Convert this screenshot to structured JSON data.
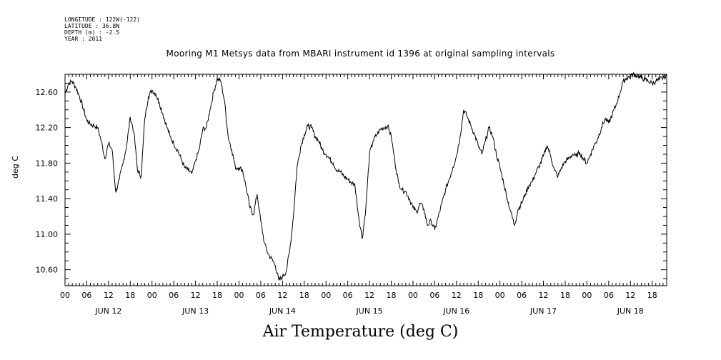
{
  "header": {
    "longitude": "LONGITUDE : 122W(-122)",
    "latitude": "LATITUDE : 36.8N",
    "depth": "DEPTH (m) : -2.5",
    "year": "YEAR : 2011"
  },
  "chart_data": {
    "type": "line",
    "title": "Mooring M1 Metsys data from MBARI instrument id 1396 at original sampling intervals",
    "xlabel": "Air Temperature (deg C)",
    "ylabel": "deg C",
    "ylim": [
      10.42,
      12.8
    ],
    "yticks": [
      10.6,
      11.0,
      11.4,
      11.8,
      12.2,
      12.6
    ],
    "ytick_labels": [
      "10.60",
      "11.00",
      "11.40",
      "11.80",
      "12.20",
      "12.60"
    ],
    "xlim_hours": [
      0,
      166
    ],
    "hour_tick_labels": [
      "00",
      "06",
      "12",
      "18",
      "00",
      "06",
      "12",
      "18",
      "00",
      "06",
      "12",
      "18",
      "00",
      "06",
      "12",
      "18",
      "00",
      "06",
      "12",
      "18",
      "00",
      "06",
      "12",
      "18",
      "00",
      "06",
      "12",
      "18"
    ],
    "day_labels": [
      "JUN 12",
      "JUN 13",
      "JUN 14",
      "JUN 15",
      "JUN 16",
      "JUN 17",
      "JUN 18"
    ],
    "grid": false,
    "series": [
      {
        "x": [
          0,
          1,
          2,
          3,
          4,
          5,
          6,
          7,
          8,
          9,
          10,
          11,
          12,
          13,
          14,
          15,
          16,
          17,
          18,
          19,
          20,
          21,
          22,
          23,
          24,
          25,
          26,
          27,
          28,
          29,
          30,
          31,
          32,
          33,
          34,
          35,
          36,
          37,
          38,
          39,
          40,
          41,
          42,
          43,
          44,
          45,
          46,
          47,
          48,
          49,
          50,
          51,
          52,
          53,
          54,
          55,
          56,
          57,
          58,
          59,
          60,
          61,
          62,
          63,
          64,
          65,
          66,
          67,
          68,
          69,
          70,
          71,
          72,
          73,
          74,
          75,
          76,
          77,
          78,
          79,
          80,
          81,
          82,
          83,
          84,
          85,
          86,
          87,
          88,
          89,
          90,
          91,
          92,
          93,
          94,
          95,
          96,
          97,
          98,
          99,
          100,
          101,
          102,
          103,
          104,
          105,
          106,
          107,
          108,
          109,
          110,
          111,
          112,
          113,
          114,
          115,
          116,
          117,
          118,
          119,
          120,
          121,
          122,
          123,
          124,
          125,
          126,
          127,
          128,
          129,
          130,
          131,
          132,
          133,
          134,
          135,
          136,
          137,
          138,
          139,
          140,
          141,
          142,
          143,
          144,
          145,
          146,
          147,
          148,
          149,
          150,
          151,
          152,
          153,
          154,
          155,
          156,
          157,
          158,
          159,
          160,
          161,
          162,
          163,
          164,
          165,
          166
        ],
        "y": [
          12.58,
          12.7,
          12.72,
          12.65,
          12.55,
          12.42,
          12.28,
          12.24,
          12.22,
          12.2,
          12.05,
          11.85,
          12.02,
          11.95,
          11.47,
          11.62,
          11.8,
          12.0,
          12.32,
          12.15,
          11.72,
          11.65,
          12.3,
          12.55,
          12.62,
          12.58,
          12.48,
          12.35,
          12.22,
          12.1,
          12.02,
          11.95,
          11.85,
          11.75,
          11.72,
          11.68,
          11.82,
          11.95,
          12.18,
          12.2,
          12.4,
          12.6,
          12.75,
          12.72,
          12.5,
          12.1,
          11.95,
          11.75,
          11.75,
          11.72,
          11.52,
          11.3,
          11.22,
          11.45,
          11.15,
          10.9,
          10.78,
          10.72,
          10.65,
          10.48,
          10.52,
          10.58,
          10.82,
          11.2,
          11.75,
          11.98,
          12.12,
          12.22,
          12.2,
          12.1,
          12.05,
          11.95,
          11.9,
          11.85,
          11.8,
          11.72,
          11.7,
          11.65,
          11.62,
          11.58,
          11.55,
          11.2,
          10.95,
          11.3,
          11.9,
          12.05,
          12.12,
          12.18,
          12.2,
          12.22,
          12.1,
          11.82,
          11.58,
          11.5,
          11.48,
          11.4,
          11.3,
          11.25,
          11.35,
          11.28,
          11.1,
          11.15,
          11.05,
          11.2,
          11.35,
          11.5,
          11.62,
          11.75,
          11.88,
          12.1,
          12.4,
          12.32,
          12.22,
          12.12,
          12.0,
          11.9,
          12.05,
          12.2,
          12.1,
          11.9,
          11.75,
          11.58,
          11.4,
          11.25,
          11.1,
          11.28,
          11.35,
          11.45,
          11.55,
          11.6,
          11.7,
          11.78,
          11.88,
          12.0,
          11.88,
          11.72,
          11.65,
          11.75,
          11.82,
          11.85,
          11.9,
          11.88,
          11.92,
          11.85,
          11.8,
          11.9,
          12.0,
          12.08,
          12.2,
          12.3,
          12.25,
          12.35,
          12.45,
          12.58,
          12.72,
          12.76,
          12.78,
          12.8,
          12.78,
          12.76,
          12.74,
          12.72,
          12.7,
          12.72,
          12.74,
          12.76,
          12.78
        ]
      }
    ]
  }
}
